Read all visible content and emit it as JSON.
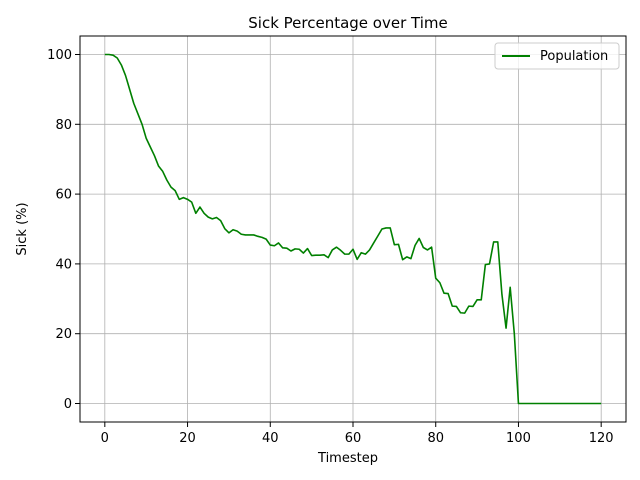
{
  "chart_data": {
    "type": "line",
    "title": "Sick Percentage over Time",
    "xlabel": "Timestep",
    "ylabel": "Sick (%)",
    "xlim": [
      -6,
      126
    ],
    "ylim": [
      -5.3,
      105.3
    ],
    "xticks": [
      0,
      20,
      40,
      60,
      80,
      100,
      120
    ],
    "yticks": [
      0,
      20,
      40,
      60,
      80,
      100
    ],
    "grid": true,
    "legend_position": "top-right",
    "series": [
      {
        "name": "Population",
        "color": "#008000",
        "x": [
          0,
          1,
          2,
          3,
          4,
          5,
          6,
          7,
          8,
          9,
          10,
          11,
          12,
          13,
          14,
          15,
          16,
          17,
          18,
          19,
          20,
          21,
          22,
          23,
          24,
          25,
          26,
          27,
          28,
          29,
          30,
          31,
          32,
          33,
          34,
          35,
          36,
          37,
          38,
          39,
          40,
          41,
          42,
          43,
          44,
          45,
          46,
          47,
          48,
          49,
          50,
          51,
          52,
          53,
          54,
          55,
          56,
          57,
          58,
          59,
          60,
          61,
          62,
          63,
          64,
          65,
          66,
          67,
          68,
          69,
          70,
          71,
          72,
          73,
          74,
          75,
          76,
          77,
          78,
          79,
          80,
          81,
          82,
          83,
          84,
          85,
          86,
          87,
          88,
          89,
          90,
          91,
          92,
          93,
          94,
          95,
          96,
          97,
          98,
          99,
          100,
          101,
          102,
          103,
          104,
          105,
          106,
          107,
          108,
          109,
          110,
          111,
          112,
          113,
          114,
          115,
          116,
          117,
          118,
          119,
          120
        ],
        "values": [
          100,
          100,
          99.8,
          99,
          97,
          94,
          90,
          86,
          83,
          80,
          76,
          73.5,
          71,
          68,
          66.5,
          64,
          62,
          61,
          58.5,
          59,
          58.5,
          57.7,
          54.5,
          56.3,
          54.5,
          53.4,
          52.9,
          53.3,
          52.4,
          50.1,
          48.9,
          49.8,
          49.4,
          48.5,
          48.3,
          48.3,
          48.3,
          47.9,
          47.6,
          47.1,
          45.4,
          45.2,
          46,
          44.6,
          44.5,
          43.7,
          44.3,
          44.2,
          43.1,
          44.4,
          42.4,
          42.5,
          42.5,
          42.6,
          41.8,
          44,
          44.8,
          43.9,
          42.8,
          42.8,
          44.2,
          41.3,
          43.2,
          42.8,
          44,
          46,
          48,
          50,
          50.3,
          50.3,
          45.5,
          45.6,
          41.2,
          42,
          41.5,
          45.3,
          47.3,
          44.7,
          44,
          44.8,
          35.9,
          34.6,
          31.6,
          31.5,
          27.9,
          27.8,
          26,
          25.9,
          27.9,
          27.8,
          29.7,
          29.7,
          39.8,
          40,
          46.3,
          46.3,
          31.3,
          21.6,
          33.3,
          20,
          0,
          0,
          0,
          0,
          0,
          0,
          0,
          0,
          0,
          0,
          0,
          0,
          0,
          0,
          0,
          0,
          0,
          0,
          0,
          0,
          0
        ]
      }
    ]
  }
}
